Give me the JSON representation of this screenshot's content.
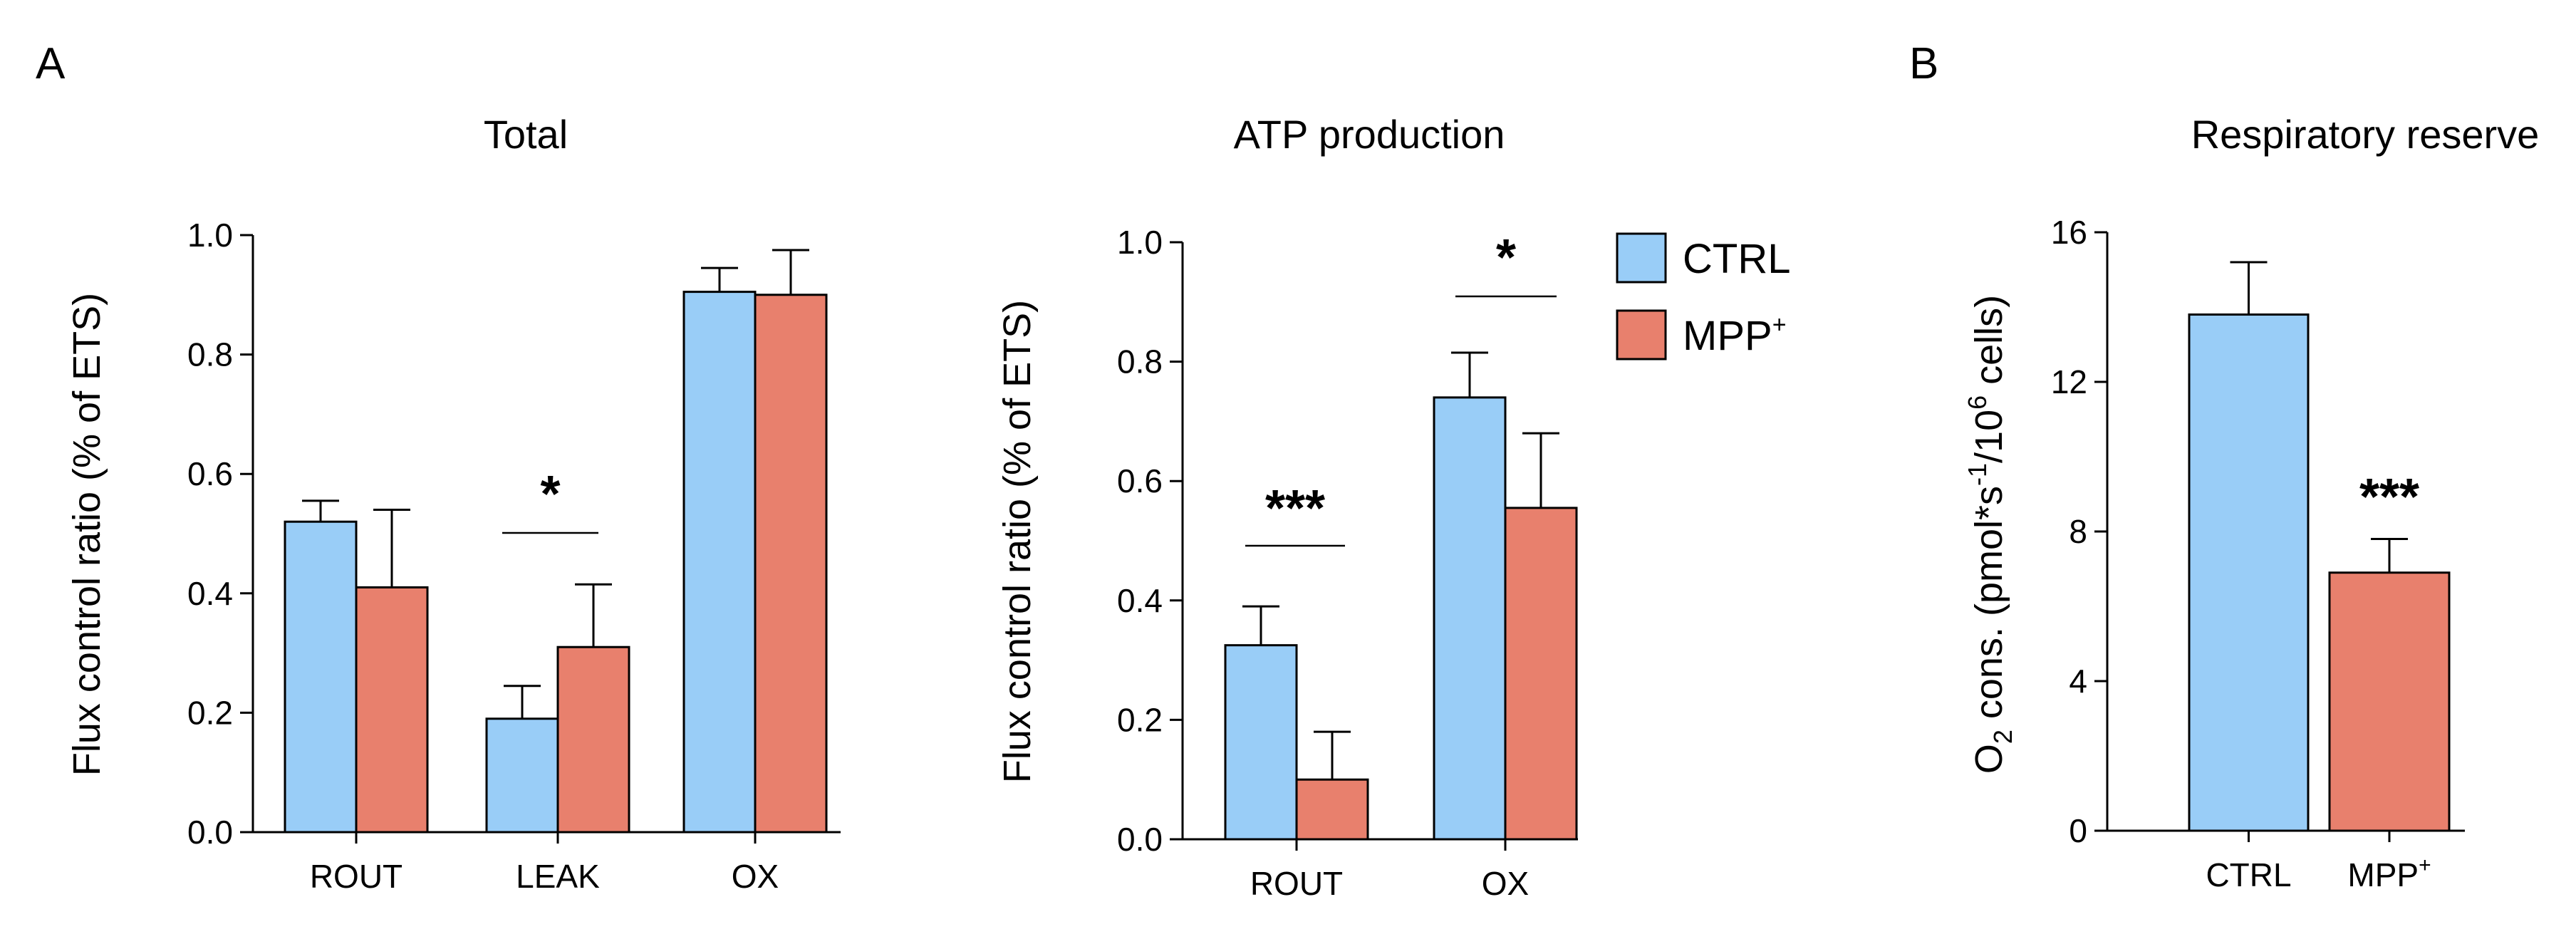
{
  "panel_labels": {
    "a": "A",
    "b": "B"
  },
  "legend": [
    {
      "name": "CTRL",
      "color": "#99cdf7"
    },
    {
      "name": "MPP+",
      "base": "MPP",
      "sup": "+",
      "color": "#e8806d"
    }
  ],
  "chart_data": [
    {
      "type": "bar",
      "title": "Total",
      "ylabel": "Flux control ratio (% of ETS)",
      "xlabel": "",
      "ylim": [
        0,
        1.0
      ],
      "yticks": [
        "0.0",
        "0.2",
        "0.4",
        "0.6",
        "0.8",
        "1.0"
      ],
      "categories": [
        "ROUT",
        "LEAK",
        "OX"
      ],
      "series": [
        {
          "name": "CTRL",
          "values": [
            0.52,
            0.19,
            0.905
          ],
          "errors": [
            0.035,
            0.055,
            0.04
          ]
        },
        {
          "name": "MPP+",
          "values": [
            0.41,
            0.31,
            0.9
          ],
          "errors": [
            0.13,
            0.105,
            0.075
          ]
        }
      ],
      "annotations": [
        {
          "category": "LEAK",
          "text": "*"
        }
      ]
    },
    {
      "type": "bar",
      "title": "ATP production",
      "ylabel": "Flux control ratio (% of ETS)",
      "xlabel": "",
      "ylim": [
        0,
        1.0
      ],
      "yticks": [
        "0.0",
        "0.2",
        "0.4",
        "0.6",
        "0.8",
        "1.0"
      ],
      "categories": [
        "ROUT",
        "OX"
      ],
      "series": [
        {
          "name": "CTRL",
          "values": [
            0.325,
            0.74
          ],
          "errors": [
            0.065,
            0.075
          ]
        },
        {
          "name": "MPP+",
          "values": [
            0.1,
            0.555
          ],
          "errors": [
            0.08,
            0.125
          ]
        }
      ],
      "annotations": [
        {
          "category": "ROUT",
          "text": "***"
        },
        {
          "category": "OX",
          "text": "*"
        }
      ]
    },
    {
      "type": "bar",
      "title": "Respiratory reserve",
      "ylabel": "O2 cons. (pmol*s-1/106 cells)",
      "ylabel_parts": {
        "o": "O",
        "sub": "2",
        "mid": " cons. (pmol*s",
        "sup1": "-1",
        "mid2": "/10",
        "sup2": "6",
        "end": " cells)"
      },
      "xlabel": "",
      "ylim": [
        0,
        16
      ],
      "yticks": [
        "0",
        "4",
        "8",
        "12",
        "16"
      ],
      "categories": [
        "CTRL",
        "MPP+"
      ],
      "category_parts": [
        {
          "base": "CTRL",
          "sup": ""
        },
        {
          "base": "MPP",
          "sup": "+"
        }
      ],
      "values": [
        13.8,
        6.9
      ],
      "errors": [
        1.4,
        0.9
      ],
      "annotations": [
        {
          "category": "MPP+",
          "text": "***"
        }
      ]
    }
  ]
}
